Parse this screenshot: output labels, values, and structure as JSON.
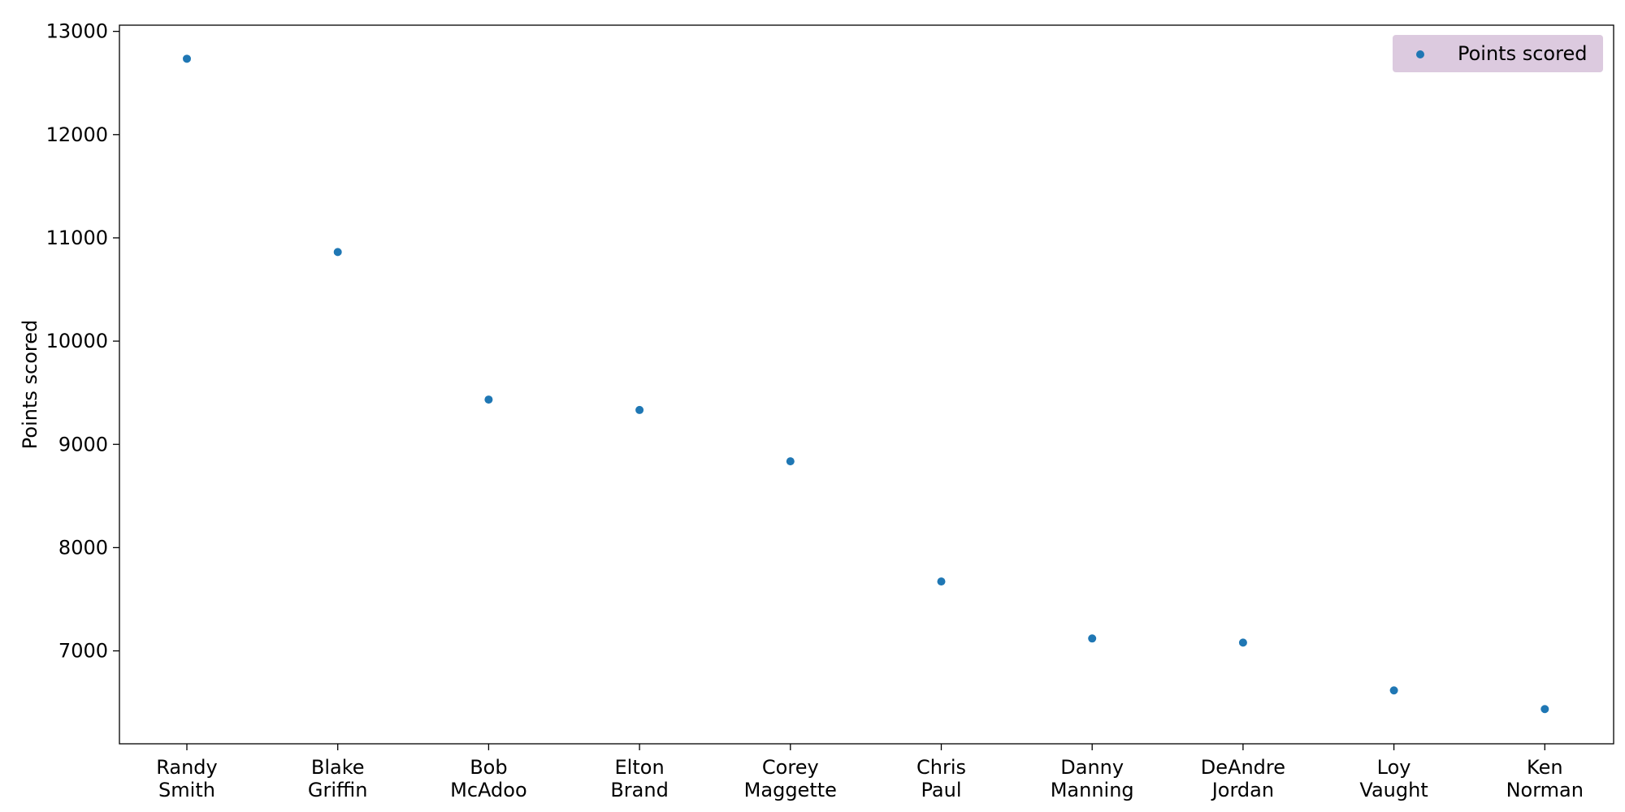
{
  "chart_data": {
    "type": "scatter",
    "title": "",
    "xlabel": "",
    "ylabel": "Points scored",
    "categories": [
      [
        "Randy",
        "Smith"
      ],
      [
        "Blake",
        "Griffin"
      ],
      [
        "Bob",
        "McAdoo"
      ],
      [
        "Elton",
        "Brand"
      ],
      [
        "Corey",
        "Maggette"
      ],
      [
        "Chris",
        "Paul"
      ],
      [
        "Danny",
        "Manning"
      ],
      [
        "DeAndre",
        "Jordan"
      ],
      [
        "Loy",
        "Vaught"
      ],
      [
        "Ken",
        "Norman"
      ]
    ],
    "series": [
      {
        "name": "Points scored",
        "values": [
          12735,
          10863,
          9434,
          9333,
          8836,
          7672,
          7120,
          7080,
          6617,
          6436
        ],
        "color": "#1f77b4"
      }
    ],
    "ylim": [
      6100,
      13060
    ],
    "yticks": [
      7000,
      8000,
      9000,
      10000,
      11000,
      12000,
      13000
    ],
    "grid": false,
    "legend": {
      "placement": "top-right",
      "background": "#dccadf"
    }
  }
}
